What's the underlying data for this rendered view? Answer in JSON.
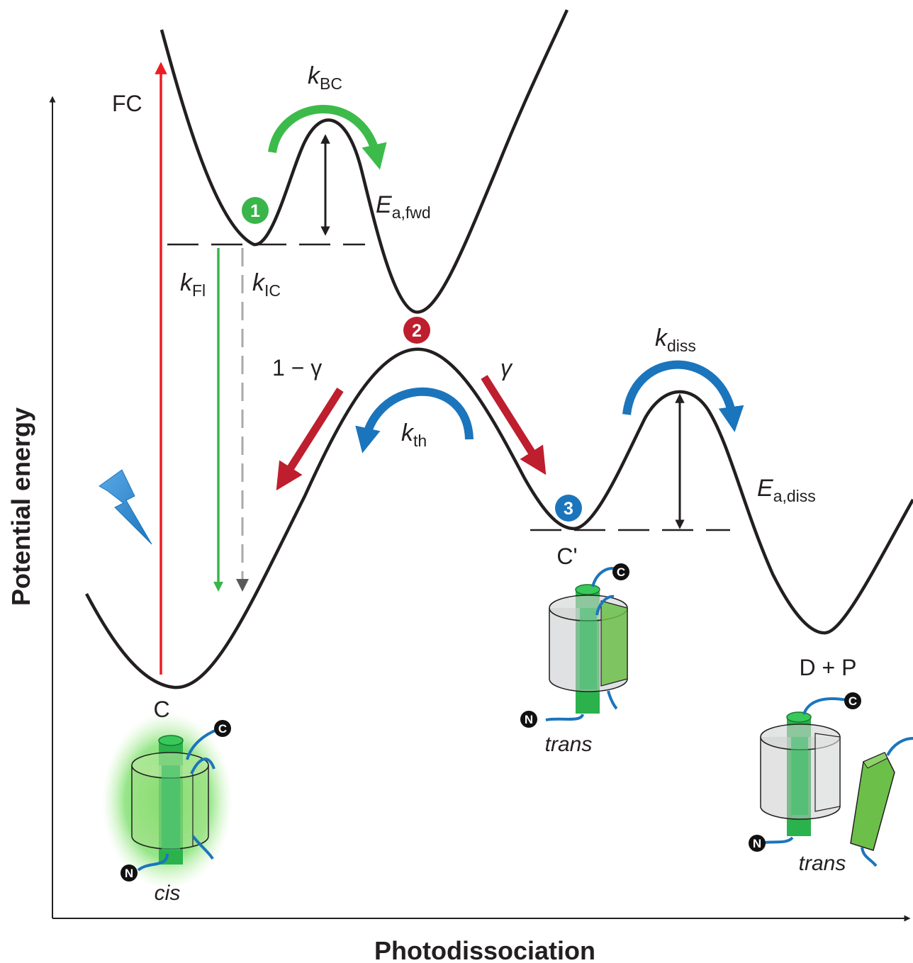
{
  "axes": {
    "x_label": "Photodissociation",
    "y_label": "Potential energy"
  },
  "labels": {
    "fc": "FC",
    "k_bc": {
      "sym": "k",
      "sub": "BC"
    },
    "ea_fwd": {
      "sym": "E",
      "sub": "a,fwd"
    },
    "k_fl": {
      "sym": "k",
      "sub": "Fl"
    },
    "k_ic": {
      "sym": "k",
      "sub": "IC"
    },
    "one_minus_gamma": "1 − γ",
    "gamma": "γ",
    "k_th": {
      "sym": "k",
      "sub": "th"
    },
    "k_diss": {
      "sym": "k",
      "sub": "diss"
    },
    "ea_diss": {
      "sym": "E",
      "sub": "a,diss"
    }
  },
  "states": {
    "c": "C",
    "c_prime": "C'",
    "dp": "D + P"
  },
  "isomers": {
    "cis": "cis",
    "trans_1": "trans",
    "trans_2": "trans"
  },
  "markers": {
    "m1": "1",
    "m2": "2",
    "m3": "3"
  },
  "termini": {
    "n": "N",
    "c": "C"
  },
  "colors": {
    "curve": "#231f20",
    "fc_arrow": "#ed1c24",
    "fluorescence": "#39b54a",
    "internal_conversion": "#808285",
    "green_arrow": "#3dbb4a",
    "red_arrow": "#be1e2d",
    "blue_arrow": "#1b75bc",
    "marker_green": "#39b54a",
    "marker_red": "#be1e2d",
    "marker_blue": "#1b75bc",
    "barrel_gray": "#d1d3d4",
    "helix_green": "#2bb24c",
    "linker_blue": "#1c75bc",
    "glow_green": "#4dd23a"
  },
  "icons": [
    "lightning-icon"
  ]
}
